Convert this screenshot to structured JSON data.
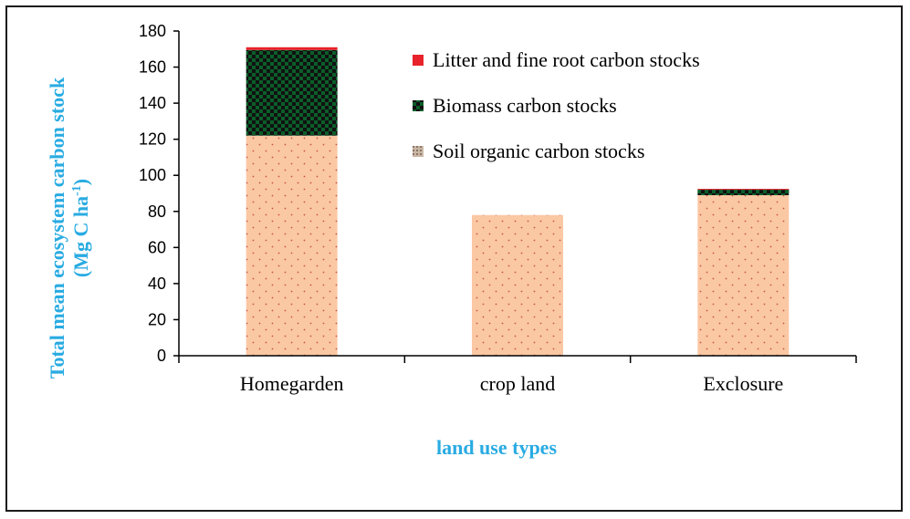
{
  "chart_data": {
    "type": "bar",
    "stacked": true,
    "categories": [
      "Homegarden",
      "crop land",
      "Exclosure"
    ],
    "series": [
      {
        "name": "Soil organic carbon stocks",
        "values": [
          122,
          78,
          89
        ],
        "color": "#fbc8a4",
        "pattern": "dots"
      },
      {
        "name": "Biomass carbon stocks",
        "values": [
          47.5,
          0,
          3
        ],
        "color": "#0b5e2a",
        "pattern": "checker"
      },
      {
        "name": "Litter and fine root carbon stocks",
        "values": [
          1.5,
          0,
          0.5
        ],
        "color": "#e8222a",
        "pattern": "solid"
      }
    ],
    "legend_order": [
      2,
      1,
      0
    ],
    "yticks": [
      0,
      20,
      40,
      60,
      80,
      100,
      120,
      140,
      160,
      180
    ],
    "ylim": [
      0,
      180
    ],
    "xlabel": "land use types",
    "ylabel_line1": "Total mean ecosystem carbon stock",
    "ylabel_line2": "(Mg C ha",
    "ylabel_sup": "-1",
    "ylabel_close": ")",
    "legend_position": "top-right",
    "grid": false
  }
}
